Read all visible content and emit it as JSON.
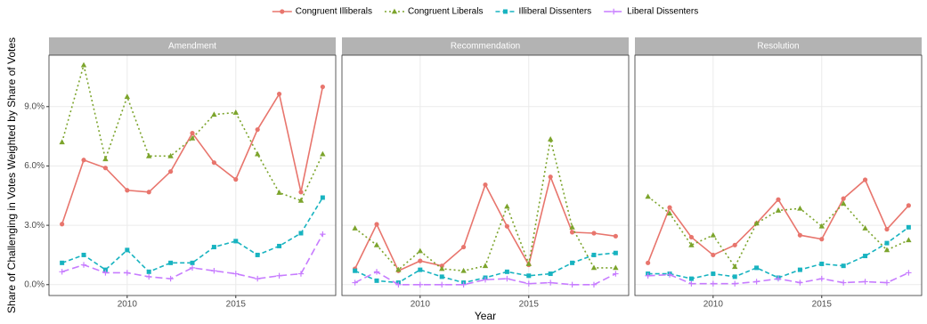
{
  "chart_data": [
    {
      "type": "line",
      "title": "Amendment",
      "ylabel": "Share of Challenging in Votes Weighted by Share of Votes",
      "x": [
        2007,
        2008,
        2009,
        2010,
        2011,
        2012,
        2013,
        2014,
        2015,
        2016,
        2017,
        2018,
        2019
      ],
      "xlim": [
        2006.4,
        2019.6
      ],
      "xticks": [
        2010,
        2015
      ],
      "ylim": [
        -0.55,
        11.6
      ],
      "yticks": [
        {
          "value": 0,
          "label": "0.0%"
        },
        {
          "value": 3,
          "label": "3.0%"
        },
        {
          "value": 6,
          "label": "6.0%"
        },
        {
          "value": 9,
          "label": "9.0%"
        }
      ],
      "grid": true,
      "legend": "top",
      "series": [
        {
          "name": "Congruent Illiberals",
          "color": "#e8756d",
          "dash": "solid",
          "marker": "circle",
          "values": [
            3.06,
            6.3,
            5.9,
            4.77,
            4.68,
            5.72,
            7.66,
            6.17,
            5.32,
            7.84,
            9.64,
            4.68,
            10.0
          ]
        },
        {
          "name": "Congruent Liberals",
          "color": "#7ca42c",
          "dash": "dotted",
          "marker": "triangle",
          "values": [
            7.2,
            11.1,
            6.35,
            9.5,
            6.5,
            6.5,
            7.4,
            8.6,
            8.7,
            6.6,
            4.65,
            4.25,
            6.6
          ]
        },
        {
          "name": "Illiberal Dissenters",
          "color": "#18b3c0",
          "dash": "dashed",
          "marker": "square",
          "values": [
            1.1,
            1.5,
            0.75,
            1.75,
            0.65,
            1.1,
            1.1,
            1.9,
            2.2,
            1.5,
            1.95,
            2.6,
            4.4
          ]
        },
        {
          "name": "Liberal Dissenters",
          "color": "#c77cff",
          "dash": "longdash",
          "marker": "plus",
          "values": [
            0.65,
            1.0,
            0.6,
            0.6,
            0.4,
            0.3,
            0.85,
            0.7,
            0.55,
            0.3,
            0.45,
            0.55,
            2.55
          ]
        }
      ]
    },
    {
      "type": "line",
      "title": "Recommendation",
      "xlabel": "Year",
      "x": [
        2007,
        2008,
        2009,
        2010,
        2011,
        2012,
        2013,
        2014,
        2015,
        2016,
        2017,
        2018,
        2019
      ],
      "xlim": [
        2006.4,
        2019.6
      ],
      "xticks": [
        2010,
        2015
      ],
      "series": [
        {
          "values": [
            0.8,
            3.05,
            0.7,
            1.2,
            0.95,
            1.9,
            5.05,
            2.95,
            1.0,
            5.45,
            2.65,
            2.6,
            2.45
          ]
        },
        {
          "values": [
            2.85,
            2.0,
            0.75,
            1.7,
            0.8,
            0.7,
            0.95,
            3.95,
            1.05,
            7.35,
            2.9,
            0.85,
            0.85
          ]
        },
        {
          "values": [
            0.7,
            0.2,
            0.1,
            0.75,
            0.4,
            0.1,
            0.35,
            0.65,
            0.45,
            0.55,
            1.1,
            1.5,
            1.6
          ]
        },
        {
          "values": [
            0.1,
            0.65,
            0.0,
            0.0,
            0.0,
            0.0,
            0.25,
            0.3,
            0.05,
            0.1,
            0.0,
            0.0,
            0.55
          ]
        }
      ]
    },
    {
      "type": "line",
      "title": "Resolution",
      "x": [
        2007,
        2008,
        2009,
        2010,
        2011,
        2012,
        2013,
        2014,
        2015,
        2016,
        2017,
        2018,
        2019
      ],
      "xlim": [
        2006.4,
        2019.6
      ],
      "xticks": [
        2010,
        2015
      ],
      "series": [
        {
          "values": [
            1.1,
            3.9,
            2.4,
            1.5,
            2.0,
            3.1,
            4.3,
            2.5,
            2.3,
            4.35,
            5.3,
            2.8,
            4.0
          ]
        },
        {
          "values": [
            4.45,
            3.6,
            2.0,
            2.5,
            0.9,
            3.1,
            3.75,
            3.85,
            2.95,
            4.1,
            2.85,
            1.75,
            2.25
          ]
        },
        {
          "values": [
            0.55,
            0.55,
            0.3,
            0.55,
            0.4,
            0.85,
            0.35,
            0.75,
            1.05,
            0.95,
            1.45,
            2.1,
            2.9
          ]
        },
        {
          "values": [
            0.45,
            0.5,
            0.05,
            0.05,
            0.05,
            0.15,
            0.3,
            0.1,
            0.3,
            0.1,
            0.15,
            0.1,
            0.6
          ]
        }
      ]
    }
  ]
}
